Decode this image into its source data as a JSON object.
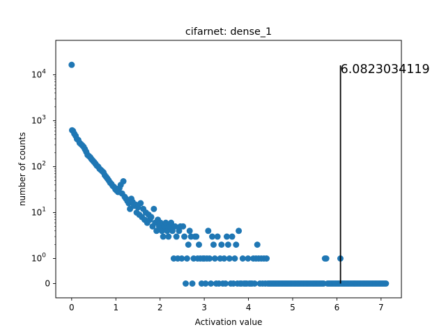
{
  "chart_data": {
    "type": "scatter",
    "title": "cifarnet: dense_1",
    "xlabel": "Activation value",
    "ylabel": "number of counts",
    "xlim": [
      -0.36,
      7.46
    ],
    "y_scale": "symlog",
    "x_ticks": [
      "0",
      "1",
      "2",
      "3",
      "4",
      "5",
      "6",
      "7"
    ],
    "x_tick_values": [
      0,
      1,
      2,
      3,
      4,
      5,
      6,
      7
    ],
    "y_ticks": [
      {
        "value": 0,
        "base": "0",
        "exp": ""
      },
      {
        "value": 1,
        "base": "10",
        "exp": "0"
      },
      {
        "value": 10,
        "base": "10",
        "exp": "1"
      },
      {
        "value": 100,
        "base": "10",
        "exp": "2"
      },
      {
        "value": 1000,
        "base": "10",
        "exp": "3"
      },
      {
        "value": 10000,
        "base": "10",
        "exp": "4"
      }
    ],
    "marker_color": "#1f77b4",
    "vline": {
      "x": 6.0823034119,
      "y_from": 0,
      "y_to": 16000,
      "color": "#000000"
    },
    "annotation": "6.0823034119",
    "series": [
      {
        "points": [
          [
            0.0,
            16500
          ],
          [
            0.01,
            620
          ],
          [
            0.03,
            600
          ],
          [
            0.06,
            520
          ],
          [
            0.09,
            470
          ],
          [
            0.12,
            400
          ],
          [
            0.15,
            380
          ],
          [
            0.18,
            330
          ],
          [
            0.21,
            310
          ],
          [
            0.24,
            290
          ],
          [
            0.27,
            270
          ],
          [
            0.3,
            240
          ],
          [
            0.33,
            210
          ],
          [
            0.36,
            180
          ],
          [
            0.39,
            170
          ],
          [
            0.42,
            160
          ],
          [
            0.45,
            145
          ],
          [
            0.48,
            135
          ],
          [
            0.51,
            125
          ],
          [
            0.54,
            115
          ],
          [
            0.57,
            105
          ],
          [
            0.6,
            100
          ],
          [
            0.63,
            90
          ],
          [
            0.66,
            85
          ],
          [
            0.69,
            80
          ],
          [
            0.72,
            75
          ],
          [
            0.75,
            65
          ],
          [
            0.78,
            60
          ],
          [
            0.81,
            55
          ],
          [
            0.84,
            50
          ],
          [
            0.87,
            45
          ],
          [
            0.9,
            42
          ],
          [
            0.93,
            38
          ],
          [
            0.96,
            36
          ],
          [
            0.99,
            32
          ],
          [
            1.02,
            30
          ],
          [
            1.05,
            28
          ],
          [
            1.08,
            34
          ],
          [
            1.11,
            40
          ],
          [
            1.14,
            26
          ],
          [
            1.17,
            48
          ],
          [
            1.2,
            22
          ],
          [
            1.23,
            20
          ],
          [
            1.26,
            18
          ],
          [
            1.29,
            16
          ],
          [
            1.32,
            12
          ],
          [
            1.35,
            20
          ],
          [
            1.38,
            17
          ],
          [
            1.41,
            14
          ],
          [
            1.44,
            15
          ],
          [
            1.47,
            10
          ],
          [
            1.5,
            13
          ],
          [
            1.53,
            9
          ],
          [
            1.56,
            16
          ],
          [
            1.59,
            8
          ],
          [
            1.62,
            12
          ],
          [
            1.65,
            7
          ],
          [
            1.68,
            10
          ],
          [
            1.71,
            6
          ],
          [
            1.74,
            9
          ],
          [
            1.77,
            7
          ],
          [
            1.8,
            8
          ],
          [
            1.83,
            5
          ],
          [
            1.86,
            12
          ],
          [
            1.89,
            6
          ],
          [
            1.92,
            4
          ],
          [
            1.95,
            7
          ],
          [
            1.98,
            5
          ],
          [
            2.01,
            6
          ],
          [
            2.04,
            4
          ],
          [
            2.07,
            3
          ],
          [
            2.1,
            5
          ],
          [
            2.13,
            6
          ],
          [
            2.16,
            4
          ],
          [
            2.19,
            3
          ],
          [
            2.22,
            5
          ],
          [
            2.25,
            6
          ],
          [
            2.28,
            4
          ],
          [
            2.31,
            1
          ],
          [
            2.34,
            5
          ],
          [
            2.37,
            3
          ],
          [
            2.4,
            1
          ],
          [
            2.43,
            4
          ],
          [
            2.46,
            5
          ],
          [
            2.49,
            1
          ],
          [
            2.52,
            5
          ],
          [
            2.55,
            3
          ],
          [
            2.58,
            0
          ],
          [
            2.61,
            1
          ],
          [
            2.64,
            2
          ],
          [
            2.67,
            4
          ],
          [
            2.7,
            3
          ],
          [
            2.73,
            0
          ],
          [
            2.76,
            1
          ],
          [
            2.79,
            3
          ],
          [
            2.82,
            3
          ],
          [
            2.85,
            1
          ],
          [
            2.88,
            2
          ],
          [
            2.91,
            1
          ],
          [
            2.94,
            0
          ],
          [
            2.97,
            1
          ],
          [
            3.0,
            1
          ],
          [
            3.03,
            0
          ],
          [
            3.06,
            1
          ],
          [
            3.09,
            4
          ],
          [
            3.12,
            1
          ],
          [
            3.15,
            0
          ],
          [
            3.18,
            3
          ],
          [
            3.21,
            2
          ],
          [
            3.24,
            1
          ],
          [
            3.27,
            0
          ],
          [
            3.3,
            3
          ],
          [
            3.33,
            0
          ],
          [
            3.36,
            1
          ],
          [
            3.39,
            2
          ],
          [
            3.42,
            0
          ],
          [
            3.45,
            1
          ],
          [
            3.48,
            0
          ],
          [
            3.51,
            3
          ],
          [
            3.54,
            2
          ],
          [
            3.57,
            1
          ],
          [
            3.6,
            0
          ],
          [
            3.63,
            3
          ],
          [
            3.66,
            0
          ],
          [
            3.69,
            1
          ],
          [
            3.72,
            2
          ],
          [
            3.75,
            0
          ],
          [
            3.78,
            4
          ],
          [
            3.81,
            0
          ],
          [
            3.84,
            0
          ],
          [
            3.87,
            1
          ],
          [
            3.9,
            0
          ],
          [
            3.93,
            0
          ],
          [
            3.96,
            0
          ],
          [
            3.99,
            1
          ],
          [
            4.02,
            0
          ],
          [
            4.05,
            0
          ],
          [
            4.08,
            0
          ],
          [
            4.11,
            1
          ],
          [
            4.14,
            0
          ],
          [
            4.17,
            1
          ],
          [
            4.2,
            2
          ],
          [
            4.23,
            1
          ],
          [
            4.26,
            0
          ],
          [
            4.29,
            1
          ],
          [
            4.32,
            0
          ],
          [
            4.35,
            1
          ],
          [
            4.38,
            0
          ],
          [
            4.41,
            1
          ],
          [
            4.44,
            0
          ],
          [
            4.47,
            0
          ],
          [
            4.5,
            0
          ],
          [
            4.53,
            0
          ],
          [
            4.56,
            0
          ],
          [
            4.59,
            0
          ],
          [
            4.62,
            0
          ],
          [
            4.65,
            0
          ],
          [
            4.68,
            0
          ],
          [
            4.71,
            0
          ],
          [
            4.74,
            0
          ],
          [
            4.77,
            0
          ],
          [
            4.8,
            0
          ],
          [
            4.83,
            0
          ],
          [
            4.86,
            0
          ],
          [
            4.89,
            0
          ],
          [
            4.92,
            0
          ],
          [
            4.95,
            0
          ],
          [
            4.98,
            0
          ],
          [
            5.01,
            0
          ],
          [
            5.04,
            0
          ],
          [
            5.07,
            0
          ],
          [
            5.1,
            0
          ],
          [
            5.13,
            0
          ],
          [
            5.16,
            0
          ],
          [
            5.19,
            0
          ],
          [
            5.22,
            0
          ],
          [
            5.25,
            0
          ],
          [
            5.28,
            0
          ],
          [
            5.31,
            0
          ],
          [
            5.34,
            0
          ],
          [
            5.37,
            0
          ],
          [
            5.4,
            0
          ],
          [
            5.43,
            0
          ],
          [
            5.46,
            0
          ],
          [
            5.49,
            0
          ],
          [
            5.52,
            0
          ],
          [
            5.55,
            0
          ],
          [
            5.58,
            0
          ],
          [
            5.61,
            0
          ],
          [
            5.64,
            0
          ],
          [
            5.67,
            0
          ],
          [
            5.7,
            0
          ],
          [
            5.73,
            1
          ],
          [
            5.76,
            1
          ],
          [
            5.79,
            0
          ],
          [
            5.82,
            0
          ],
          [
            5.85,
            0
          ],
          [
            5.88,
            0
          ],
          [
            5.91,
            0
          ],
          [
            5.94,
            0
          ],
          [
            5.97,
            0
          ],
          [
            6.0,
            0
          ],
          [
            6.03,
            0
          ],
          [
            6.06,
            0
          ],
          [
            6.08,
            1
          ],
          [
            6.09,
            0
          ],
          [
            6.12,
            0
          ],
          [
            6.15,
            0
          ],
          [
            6.18,
            0
          ],
          [
            6.21,
            0
          ],
          [
            6.24,
            0
          ],
          [
            6.27,
            0
          ],
          [
            6.3,
            0
          ],
          [
            6.33,
            0
          ],
          [
            6.36,
            0
          ],
          [
            6.39,
            0
          ],
          [
            6.42,
            0
          ],
          [
            6.45,
            0
          ],
          [
            6.48,
            0
          ],
          [
            6.51,
            0
          ],
          [
            6.54,
            0
          ],
          [
            6.57,
            0
          ],
          [
            6.6,
            0
          ],
          [
            6.63,
            0
          ],
          [
            6.66,
            0
          ],
          [
            6.69,
            0
          ],
          [
            6.72,
            0
          ],
          [
            6.75,
            0
          ],
          [
            6.78,
            0
          ],
          [
            6.81,
            0
          ],
          [
            6.84,
            0
          ],
          [
            6.87,
            0
          ],
          [
            6.9,
            0
          ],
          [
            6.93,
            0
          ],
          [
            6.96,
            0
          ],
          [
            6.99,
            0
          ],
          [
            7.02,
            0
          ],
          [
            7.05,
            0
          ],
          [
            7.08,
            0
          ],
          [
            7.11,
            0
          ]
        ]
      }
    ]
  }
}
